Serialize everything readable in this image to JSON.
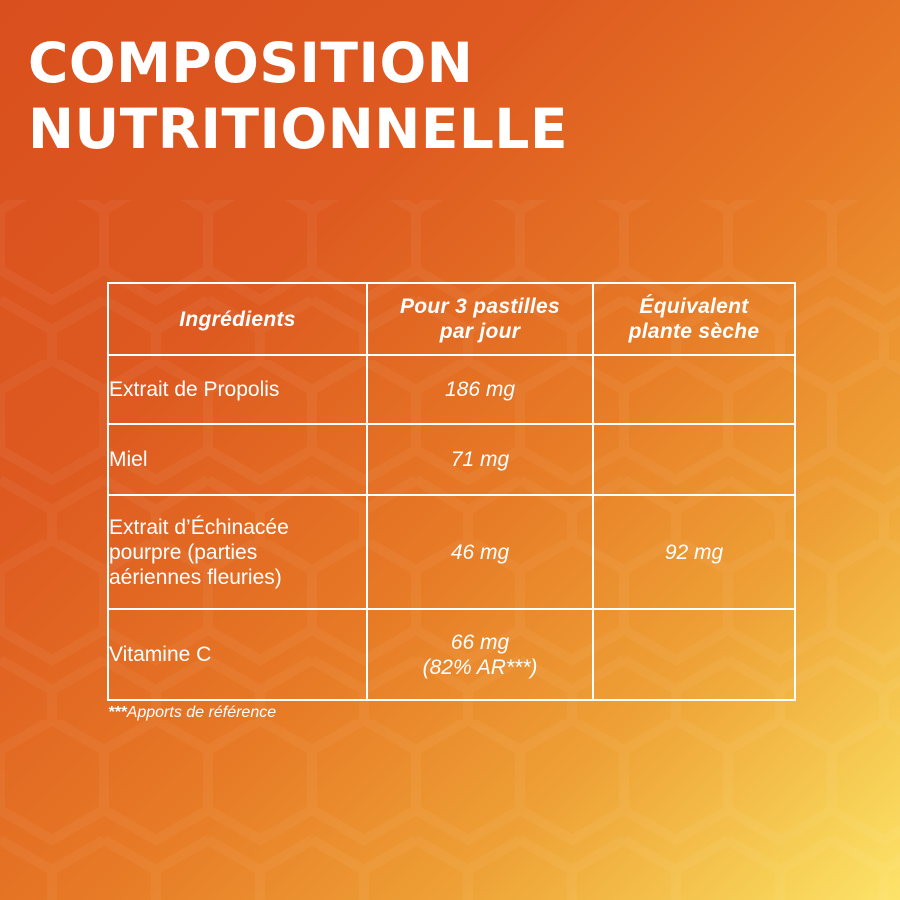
{
  "title": {
    "line1": "COMPOSITION",
    "line2": "NUTRITIONNELLE"
  },
  "table": {
    "headers": {
      "ingredients": "Ingrédients",
      "dose_line1": "Pour 3 pastilles",
      "dose_line2": "par jour",
      "equiv_line1": "Équivalent",
      "equiv_line2": "plante sèche"
    },
    "rows": [
      {
        "ingredient": "Extrait de Propolis",
        "dose": "186 mg",
        "dose_note": "",
        "equivalent": ""
      },
      {
        "ingredient": "Miel",
        "dose": "71 mg",
        "dose_note": "",
        "equivalent": ""
      },
      {
        "ingredient": "Extrait d’Échinacée pourpre (parties aériennes fleuries)",
        "dose": "46 mg",
        "dose_note": "",
        "equivalent": "92 mg"
      },
      {
        "ingredient": "Vitamine C",
        "dose": "66 mg",
        "dose_note": "(82% AR***)",
        "equivalent": ""
      }
    ]
  },
  "footnote": {
    "marker": "***",
    "text": "Apports de référence"
  },
  "colors": {
    "background_start": "#d94f1e",
    "background_end": "#fde36a",
    "text": "#ffffff"
  }
}
